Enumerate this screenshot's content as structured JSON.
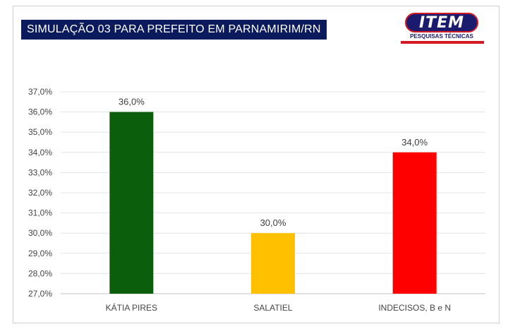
{
  "header": {
    "title": "SIMULAÇÃO 03 PARA PREFEITO EM PARNAMIRIM/RN"
  },
  "logo": {
    "name": "ITEM",
    "subtitle": "PESQUISAS TÉCNICAS",
    "colors": {
      "primary": "#1a1a6e",
      "accent": "#d41a24"
    }
  },
  "chart_data": {
    "type": "bar",
    "title": "",
    "xlabel": "",
    "ylabel": "",
    "categories": [
      "KÁTIA PIRES",
      "SALATIEL",
      "INDECISOS, B e N"
    ],
    "values": [
      36.0,
      30.0,
      34.0
    ],
    "value_labels": [
      "36,0%",
      "30,0%",
      "34,0%"
    ],
    "colors": [
      "#0b5e0b",
      "#ffc000",
      "#ff0000"
    ],
    "ylim": [
      27,
      37
    ],
    "yticks": [
      "27,0%",
      "28,0%",
      "29,0%",
      "30,0%",
      "31,0%",
      "32,0%",
      "33,0%",
      "34,0%",
      "35,0%",
      "36,0%",
      "37,0%"
    ],
    "grid": true,
    "legend": "none"
  }
}
